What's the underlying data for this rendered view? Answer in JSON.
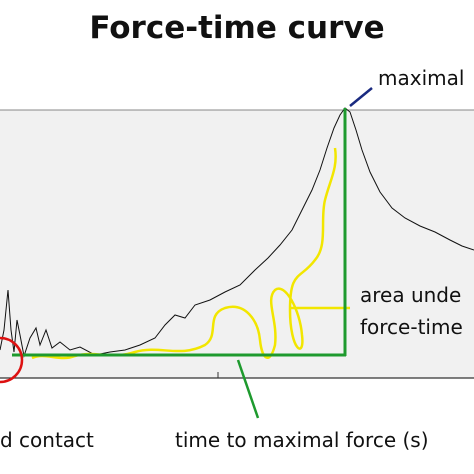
{
  "title": "Force-time curve",
  "annotations": {
    "peak": "maximal",
    "area_line1": "area unde",
    "area_line2": "force-time",
    "contact": "d contact",
    "time": "time to maximal force (s)"
  }
}
